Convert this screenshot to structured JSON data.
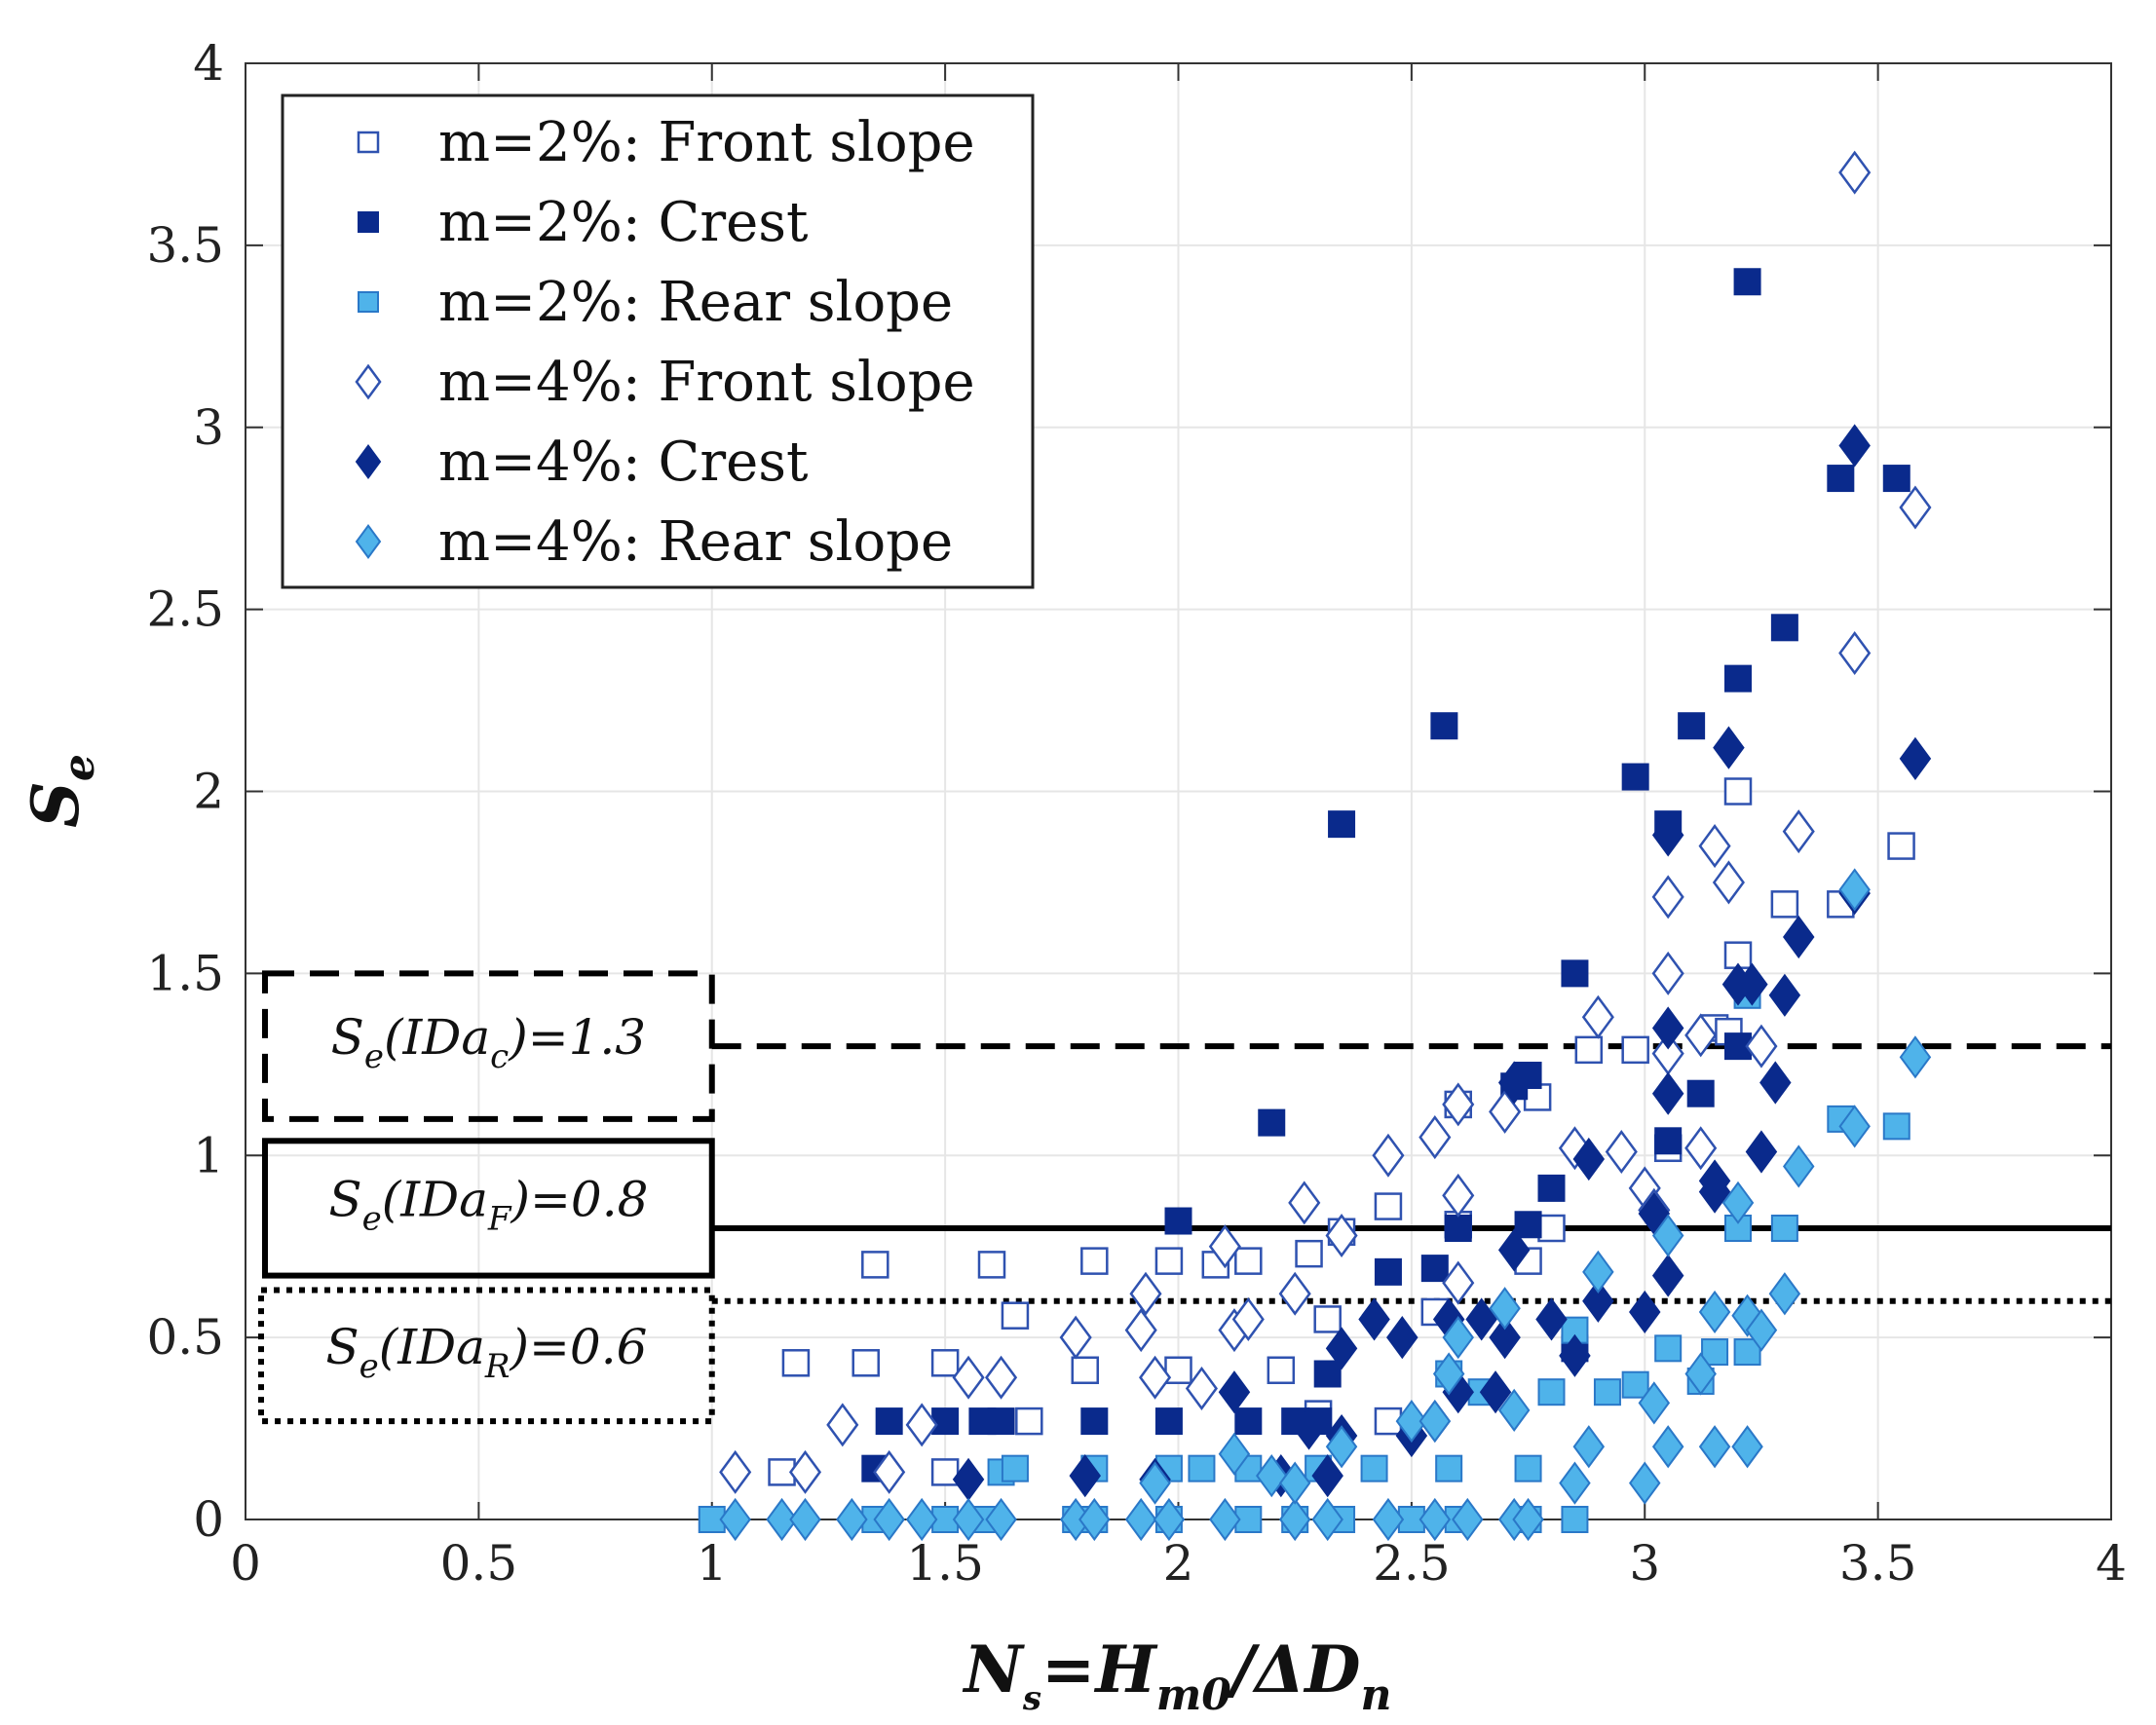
{
  "chart_data": {
    "type": "scatter",
    "xlabel": {
      "main": "N",
      "sub1": "s",
      "mid": "=H",
      "sub2": "m0",
      "tail": "/ΔD",
      "sub3": "n"
    },
    "ylabel": {
      "main": "S",
      "sub": "e"
    },
    "xlim": [
      0,
      4
    ],
    "ylim": [
      0,
      4
    ],
    "xticks": [
      0,
      0.5,
      1,
      1.5,
      2,
      2.5,
      3,
      3.5,
      4
    ],
    "yticks": [
      0,
      0.5,
      1,
      1.5,
      2,
      2.5,
      3,
      3.5,
      4
    ],
    "xtick_labels": [
      "0",
      "0.5",
      "1",
      "1.5",
      "2",
      "2.5",
      "3",
      "3.5",
      "4"
    ],
    "ytick_labels": [
      "0",
      "0.5",
      "1",
      "1.5",
      "2",
      "2.5",
      "3",
      "3.5",
      "4"
    ],
    "grid": true,
    "legend_position": "top-left",
    "colors": {
      "dark": "#0a2a8c",
      "light": "#4fb3ea",
      "open_edge": "#2f52b0",
      "black": "#000000"
    },
    "series": [
      {
        "name": "m=2%: Front slope",
        "marker": "square",
        "fill": "open",
        "points": [
          [
            1.35,
            0.7
          ],
          [
            1.6,
            0.7
          ],
          [
            1.82,
            0.71
          ],
          [
            1.98,
            0.71
          ],
          [
            2.08,
            0.7
          ],
          [
            2.15,
            0.71
          ],
          [
            2.28,
            0.73
          ],
          [
            2.35,
            0.79
          ],
          [
            2.45,
            0.86
          ],
          [
            2.6,
            0.81
          ],
          [
            2.75,
            0.71
          ],
          [
            2.6,
            1.14
          ],
          [
            2.77,
            1.16
          ],
          [
            2.88,
            1.29
          ],
          [
            2.98,
            1.29
          ],
          [
            3.05,
            1.02
          ],
          [
            3.15,
            1.35
          ],
          [
            3.18,
            1.34
          ],
          [
            3.2,
            1.55
          ],
          [
            3.2,
            2.0
          ],
          [
            3.3,
            1.69
          ],
          [
            3.42,
            1.69
          ],
          [
            3.55,
            1.85
          ],
          [
            1.15,
            0.13
          ],
          [
            1.18,
            0.43
          ],
          [
            1.33,
            0.43
          ],
          [
            1.5,
            0.43
          ],
          [
            1.5,
            0.13
          ],
          [
            1.65,
            0.56
          ],
          [
            1.68,
            0.27
          ],
          [
            1.8,
            0.41
          ],
          [
            2.0,
            0.41
          ],
          [
            2.22,
            0.41
          ],
          [
            2.32,
            0.55
          ],
          [
            2.55,
            0.57
          ],
          [
            2.3,
            0.29
          ],
          [
            2.45,
            0.27
          ],
          [
            2.8,
            0.8
          ]
        ]
      },
      {
        "name": "m=2%: Crest",
        "marker": "square",
        "fill": "dark",
        "points": [
          [
            1.35,
            0.14
          ],
          [
            1.38,
            0.27
          ],
          [
            1.5,
            0.27
          ],
          [
            1.58,
            0.27
          ],
          [
            1.62,
            0.27
          ],
          [
            1.82,
            0.27
          ],
          [
            1.98,
            0.27
          ],
          [
            2.15,
            0.27
          ],
          [
            2.25,
            0.27
          ],
          [
            2.3,
            0.27
          ],
          [
            2.0,
            0.82
          ],
          [
            2.2,
            1.09
          ],
          [
            2.35,
            1.91
          ],
          [
            2.57,
            2.18
          ],
          [
            2.45,
            0.68
          ],
          [
            2.32,
            0.4
          ],
          [
            2.55,
            0.69
          ],
          [
            2.6,
            0.8
          ],
          [
            2.75,
            0.81
          ],
          [
            2.72,
            1.19
          ],
          [
            2.75,
            1.22
          ],
          [
            2.8,
            0.91
          ],
          [
            2.85,
            1.5
          ],
          [
            2.98,
            2.04
          ],
          [
            3.05,
            1.91
          ],
          [
            3.05,
            1.04
          ],
          [
            3.1,
            2.18
          ],
          [
            3.12,
            1.17
          ],
          [
            3.2,
            1.3
          ],
          [
            3.2,
            2.31
          ],
          [
            3.3,
            2.45
          ],
          [
            3.42,
            2.86
          ],
          [
            3.54,
            2.86
          ],
          [
            3.22,
            3.4
          ],
          [
            2.85,
            0.47
          ]
        ]
      },
      {
        "name": "m=2%: Rear slope",
        "marker": "square",
        "fill": "light",
        "points": [
          [
            1.0,
            0.0
          ],
          [
            1.35,
            0.0
          ],
          [
            1.5,
            0.0
          ],
          [
            1.58,
            0.0
          ],
          [
            1.78,
            0.0
          ],
          [
            1.82,
            0.0
          ],
          [
            1.98,
            0.0
          ],
          [
            2.15,
            0.0
          ],
          [
            2.25,
            0.0
          ],
          [
            2.35,
            0.0
          ],
          [
            2.5,
            0.0
          ],
          [
            2.6,
            0.0
          ],
          [
            2.75,
            0.0
          ],
          [
            2.85,
            0.0
          ],
          [
            1.62,
            0.13
          ],
          [
            1.65,
            0.14
          ],
          [
            1.82,
            0.14
          ],
          [
            1.98,
            0.14
          ],
          [
            2.05,
            0.14
          ],
          [
            2.15,
            0.14
          ],
          [
            2.3,
            0.14
          ],
          [
            2.42,
            0.14
          ],
          [
            2.58,
            0.14
          ],
          [
            2.75,
            0.14
          ],
          [
            2.58,
            0.4
          ],
          [
            2.65,
            0.35
          ],
          [
            2.8,
            0.35
          ],
          [
            2.85,
            0.52
          ],
          [
            2.92,
            0.35
          ],
          [
            2.98,
            0.37
          ],
          [
            3.05,
            0.47
          ],
          [
            3.12,
            0.38
          ],
          [
            3.15,
            0.46
          ],
          [
            3.22,
            0.46
          ],
          [
            3.2,
            0.8
          ],
          [
            3.3,
            0.8
          ],
          [
            3.22,
            1.44
          ],
          [
            3.42,
            1.1
          ],
          [
            3.54,
            1.08
          ]
        ]
      },
      {
        "name": "m=4%: Front slope",
        "marker": "diamond",
        "fill": "open",
        "points": [
          [
            1.05,
            0.13
          ],
          [
            1.2,
            0.13
          ],
          [
            1.28,
            0.26
          ],
          [
            1.38,
            0.13
          ],
          [
            1.45,
            0.26
          ],
          [
            1.55,
            0.39
          ],
          [
            1.62,
            0.39
          ],
          [
            1.78,
            0.5
          ],
          [
            1.92,
            0.52
          ],
          [
            1.95,
            0.39
          ],
          [
            2.05,
            0.36
          ],
          [
            1.93,
            0.62
          ],
          [
            2.1,
            0.75
          ],
          [
            2.12,
            0.52
          ],
          [
            2.15,
            0.55
          ],
          [
            2.25,
            0.62
          ],
          [
            2.27,
            0.87
          ],
          [
            2.35,
            0.78
          ],
          [
            2.45,
            1.0
          ],
          [
            2.55,
            1.05
          ],
          [
            2.6,
            1.14
          ],
          [
            2.6,
            0.89
          ],
          [
            2.6,
            0.65
          ],
          [
            2.7,
            1.12
          ],
          [
            2.85,
            1.02
          ],
          [
            2.9,
            1.38
          ],
          [
            2.95,
            1.01
          ],
          [
            3.0,
            0.91
          ],
          [
            3.05,
            1.71
          ],
          [
            3.05,
            1.5
          ],
          [
            3.05,
            1.28
          ],
          [
            3.12,
            1.33
          ],
          [
            3.12,
            1.02
          ],
          [
            3.15,
            1.85
          ],
          [
            3.18,
            1.75
          ],
          [
            3.25,
            1.3
          ],
          [
            3.33,
            1.89
          ],
          [
            3.45,
            2.38
          ],
          [
            3.45,
            3.7
          ],
          [
            3.58,
            2.78
          ],
          [
            3.02,
            0.85
          ]
        ]
      },
      {
        "name": "m=4%: Crest",
        "marker": "diamond",
        "fill": "dark",
        "points": [
          [
            1.55,
            0.11
          ],
          [
            1.8,
            0.12
          ],
          [
            1.95,
            0.11
          ],
          [
            2.12,
            0.35
          ],
          [
            2.22,
            0.12
          ],
          [
            2.28,
            0.25
          ],
          [
            2.32,
            0.12
          ],
          [
            2.35,
            0.23
          ],
          [
            2.35,
            0.47
          ],
          [
            2.42,
            0.55
          ],
          [
            2.48,
            0.5
          ],
          [
            2.5,
            0.23
          ],
          [
            2.55,
            0.27
          ],
          [
            2.58,
            0.55
          ],
          [
            2.6,
            0.35
          ],
          [
            2.65,
            0.55
          ],
          [
            2.7,
            0.5
          ],
          [
            2.68,
            0.35
          ],
          [
            2.72,
            1.2
          ],
          [
            2.72,
            0.74
          ],
          [
            2.8,
            0.55
          ],
          [
            2.85,
            0.45
          ],
          [
            2.88,
            0.99
          ],
          [
            2.9,
            0.6
          ],
          [
            3.0,
            0.57
          ],
          [
            3.02,
            0.84
          ],
          [
            3.05,
            1.35
          ],
          [
            3.05,
            1.17
          ],
          [
            3.05,
            1.88
          ],
          [
            3.05,
            0.67
          ],
          [
            3.15,
            0.9
          ],
          [
            3.15,
            0.93
          ],
          [
            3.18,
            2.12
          ],
          [
            3.2,
            1.47
          ],
          [
            3.23,
            1.47
          ],
          [
            3.25,
            1.01
          ],
          [
            3.28,
            1.2
          ],
          [
            3.3,
            1.44
          ],
          [
            3.33,
            1.6
          ],
          [
            3.45,
            1.72
          ],
          [
            3.45,
            2.95
          ],
          [
            3.58,
            2.09
          ]
        ]
      },
      {
        "name": "m=4%: Rear slope",
        "marker": "diamond",
        "fill": "light",
        "points": [
          [
            1.05,
            0.0
          ],
          [
            1.15,
            0.0
          ],
          [
            1.2,
            0.0
          ],
          [
            1.3,
            0.0
          ],
          [
            1.38,
            0.0
          ],
          [
            1.45,
            0.0
          ],
          [
            1.55,
            0.0
          ],
          [
            1.62,
            0.0
          ],
          [
            1.78,
            0.0
          ],
          [
            1.82,
            0.0
          ],
          [
            1.92,
            0.0
          ],
          [
            1.98,
            0.0
          ],
          [
            2.1,
            0.0
          ],
          [
            2.25,
            0.0
          ],
          [
            2.32,
            0.0
          ],
          [
            2.45,
            0.0
          ],
          [
            2.55,
            0.0
          ],
          [
            2.62,
            0.0
          ],
          [
            2.72,
            0.0
          ],
          [
            2.75,
            0.0
          ],
          [
            1.95,
            0.1
          ],
          [
            2.12,
            0.18
          ],
          [
            2.2,
            0.12
          ],
          [
            2.25,
            0.1
          ],
          [
            2.35,
            0.2
          ],
          [
            2.5,
            0.27
          ],
          [
            2.55,
            0.27
          ],
          [
            2.58,
            0.4
          ],
          [
            2.6,
            0.5
          ],
          [
            2.7,
            0.58
          ],
          [
            2.72,
            0.3
          ],
          [
            2.85,
            0.1
          ],
          [
            2.88,
            0.2
          ],
          [
            2.9,
            0.68
          ],
          [
            3.0,
            0.1
          ],
          [
            3.02,
            0.32
          ],
          [
            3.05,
            0.2
          ],
          [
            3.05,
            0.78
          ],
          [
            3.12,
            0.4
          ],
          [
            3.15,
            0.2
          ],
          [
            3.2,
            0.87
          ],
          [
            3.22,
            0.2
          ],
          [
            3.22,
            0.56
          ],
          [
            3.25,
            0.52
          ],
          [
            3.3,
            0.62
          ],
          [
            3.33,
            0.97
          ],
          [
            3.45,
            1.08
          ],
          [
            3.45,
            1.73
          ],
          [
            3.58,
            1.27
          ],
          [
            3.15,
            0.57
          ]
        ]
      }
    ],
    "reference_lines": [
      {
        "name": "Se(IDa_c)",
        "y": 1.3,
        "style": "dashed"
      },
      {
        "name": "Se(IDa_F)",
        "y": 0.8,
        "style": "solid"
      },
      {
        "name": "Se(IDa_R)",
        "y": 0.6,
        "style": "dotted"
      }
    ],
    "annotations": [
      {
        "main": "S",
        "sub1": "e",
        "mid": "(IDa",
        "sub2": "c",
        "tail": ")=1.3",
        "style": "dashed",
        "box_y": [
          1.1,
          1.5
        ]
      },
      {
        "main": "S",
        "sub1": "e",
        "mid": "(IDa",
        "sub2": "F",
        "tail": ")=0.8",
        "style": "solid",
        "box_y": [
          0.67,
          1.04
        ]
      },
      {
        "main": "S",
        "sub1": "e",
        "mid": "(IDa",
        "sub2": "R",
        "tail": ")=0.6",
        "style": "dotted",
        "box_y": [
          0.27,
          0.63
        ]
      }
    ]
  }
}
